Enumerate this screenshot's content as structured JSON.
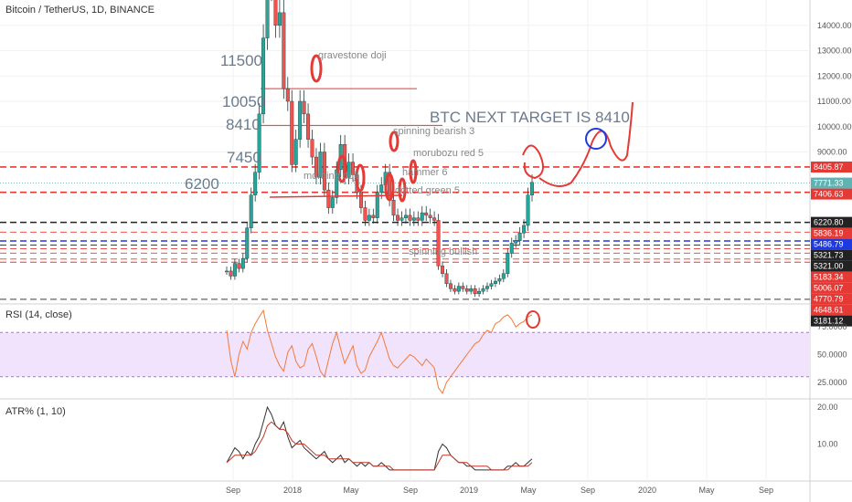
{
  "header": {
    "title": "Bitcoin / TetherUS, 1D, BINANCE"
  },
  "colors": {
    "up": "#26a69a",
    "down": "#ef5350",
    "red": "#e53935",
    "black": "#222222",
    "blue": "#1e3adf",
    "teal_line": "#5fb3b3",
    "rsi": "#f37a3a",
    "rsi_band": "#f1e3fb",
    "atr_black": "#333333",
    "atr_red": "#c0392b"
  },
  "chart_data": [
    {
      "id": "price",
      "type": "candlestick",
      "title": "Bitcoin / TetherUS, 1D, BINANCE",
      "x_ticks": [
        "Sep",
        "2018",
        "May",
        "Sep",
        "2019",
        "May",
        "Sep",
        "2020",
        "May",
        "Sep"
      ],
      "ylim": [
        3000,
        15000
      ],
      "y_ticks": [
        14000,
        13000,
        12000,
        11000,
        10000,
        9000
      ],
      "y_tick_labels": [
        "14000.00",
        "13000.00",
        "12000.00",
        "11000.00",
        "10000.00",
        "9000.00"
      ],
      "price_tags": [
        {
          "label": "8405.87",
          "value": 8405.87,
          "color": "red"
        },
        {
          "label": "7771.33",
          "value": 7771.33,
          "color": "teal"
        },
        {
          "label": "7406.63",
          "value": 7406.63,
          "color": "red"
        },
        {
          "label": "6220.80",
          "value": 6220.8,
          "color": "black"
        },
        {
          "label": "5836.19",
          "value": 5836.19,
          "color": "red"
        },
        {
          "label": "5486.79",
          "value": 5486.79,
          "color": "blue"
        },
        {
          "label": "5321.73",
          "value": 5321.73,
          "color": "black"
        },
        {
          "label": "5321.00",
          "value": 5321.0,
          "color": "black"
        },
        {
          "label": "5183.34",
          "value": 5183.34,
          "color": "red"
        },
        {
          "label": "5006.07",
          "value": 5006.07,
          "color": "red"
        },
        {
          "label": "4770.79",
          "value": 4770.79,
          "color": "red"
        },
        {
          "label": "4648.61",
          "value": 4648.61,
          "color": "red"
        },
        {
          "label": "3181.12",
          "value": 3181.12,
          "color": "black"
        }
      ],
      "close_series": [
        4300,
        4100,
        4600,
        4400,
        4800,
        6000,
        7300,
        8200,
        10500,
        13500,
        16000,
        15500,
        14000,
        14500,
        11500,
        11000,
        8500,
        9500,
        11000,
        10500,
        9500,
        8800,
        8000,
        9000,
        7500,
        6800,
        7200,
        8300,
        9300,
        8000,
        8600,
        8100,
        7400,
        6800,
        6300,
        6500,
        6400,
        7400,
        7700,
        8200,
        7100,
        6500,
        6300,
        6400,
        6500,
        6300,
        6400,
        6300,
        6600,
        6500,
        6400,
        6300,
        4500,
        4200,
        3800,
        3600,
        3500,
        3700,
        3600,
        3500,
        3600,
        3400,
        3500,
        3600,
        3700,
        3800,
        3900,
        4000,
        4200,
        5000,
        5400,
        5500,
        5800,
        6100,
        7300,
        7800
      ],
      "annotations": [
        {
          "text": "11500",
          "value": 11500
        },
        {
          "text": "10050",
          "value": 10050
        },
        {
          "text": "8410",
          "value": 8410
        },
        {
          "text": "7450",
          "value": 7450
        },
        {
          "text": "6200",
          "value": 6200
        },
        {
          "text": "gravestone doji"
        },
        {
          "text": "spinning bearish 3"
        },
        {
          "text": "morubozu red 5"
        },
        {
          "text": "morning doji"
        },
        {
          "text": "hammer 6"
        },
        {
          "text": "dotted green 5"
        },
        {
          "text": "spinning bullish"
        },
        {
          "text": "BTC NEXT TARGET IS 8410"
        }
      ],
      "horizontal_levels": [
        {
          "value": 11500,
          "style": "solid",
          "color": "red"
        },
        {
          "value": 10050,
          "style": "solid",
          "color": "red"
        },
        {
          "value": 8405.87,
          "style": "dashed",
          "color": "red"
        },
        {
          "value": 7771.33,
          "style": "dotted",
          "color": "teal"
        },
        {
          "value": 7406.63,
          "style": "dashed",
          "color": "red"
        },
        {
          "value": 6220.8,
          "style": "dashed",
          "color": "black"
        },
        {
          "value": 5836.19,
          "style": "dashed",
          "color": "red"
        },
        {
          "value": 5486.79,
          "style": "dashed",
          "color": "blue"
        },
        {
          "value": 5321.73,
          "style": "dashed",
          "color": "black"
        },
        {
          "value": 5183.34,
          "style": "dashed",
          "color": "red"
        },
        {
          "value": 5006.07,
          "style": "dashed",
          "color": "red"
        },
        {
          "value": 4770.79,
          "style": "dashed",
          "color": "red"
        },
        {
          "value": 4648.61,
          "style": "dashed",
          "color": "red"
        },
        {
          "value": 3181.12,
          "style": "dashed",
          "color": "black"
        }
      ]
    },
    {
      "id": "rsi",
      "type": "line",
      "title": "RSI (14, close)",
      "ylim": [
        10,
        95
      ],
      "y_ticks": [
        75,
        50,
        25
      ],
      "y_tick_labels": [
        "75.0000",
        "50.0000",
        "25.0000"
      ],
      "band": [
        30,
        70
      ],
      "values": [
        72,
        45,
        30,
        50,
        62,
        55,
        70,
        78,
        84,
        90,
        72,
        60,
        48,
        40,
        35,
        52,
        58,
        44,
        38,
        40,
        55,
        60,
        48,
        35,
        30,
        45,
        60,
        70,
        55,
        42,
        50,
        58,
        40,
        33,
        36,
        48,
        55,
        62,
        70,
        58,
        46,
        40,
        38,
        42,
        46,
        50,
        48,
        44,
        40,
        46,
        42,
        38,
        20,
        15,
        25,
        30,
        35,
        40,
        45,
        50,
        55,
        60,
        62,
        68,
        72,
        70,
        78,
        80,
        84,
        86,
        82,
        75,
        78,
        80,
        84,
        86
      ]
    },
    {
      "id": "atr",
      "type": "line",
      "title": "ATR% (1, 10)",
      "ylim": [
        0,
        22
      ],
      "y_ticks": [
        20,
        10
      ],
      "y_tick_labels": [
        "20.00",
        "10.00"
      ],
      "series": [
        {
          "values": [
            5,
            7,
            9,
            8,
            6,
            8,
            7,
            10,
            12,
            16,
            20,
            18,
            15,
            14,
            16,
            12,
            9,
            10,
            11,
            9,
            8,
            7,
            6,
            7,
            8,
            6,
            5,
            6,
            7,
            5,
            6,
            5,
            4,
            5,
            4,
            5,
            4,
            4,
            5,
            4,
            3,
            3,
            3,
            3,
            3,
            3,
            3,
            3,
            3,
            3,
            3,
            3,
            8,
            10,
            9,
            7,
            6,
            5,
            5,
            4,
            4,
            3,
            3,
            3,
            3,
            3,
            3,
            3,
            3,
            4,
            4,
            5,
            4,
            4,
            5,
            6
          ]
        },
        {
          "values": [
            5,
            6,
            7,
            7,
            7,
            7,
            7,
            8,
            10,
            12,
            15,
            16,
            15,
            14,
            14,
            13,
            11,
            10,
            10,
            10,
            9,
            8,
            7,
            7,
            7,
            6,
            6,
            6,
            6,
            6,
            6,
            5,
            5,
            5,
            5,
            5,
            4,
            4,
            4,
            4,
            4,
            3,
            3,
            3,
            3,
            3,
            3,
            3,
            3,
            3,
            3,
            3,
            5,
            7,
            7,
            7,
            6,
            5,
            5,
            5,
            4,
            4,
            4,
            4,
            4,
            3,
            3,
            3,
            3,
            3,
            4,
            4,
            4,
            4,
            4,
            5
          ]
        }
      ]
    }
  ]
}
